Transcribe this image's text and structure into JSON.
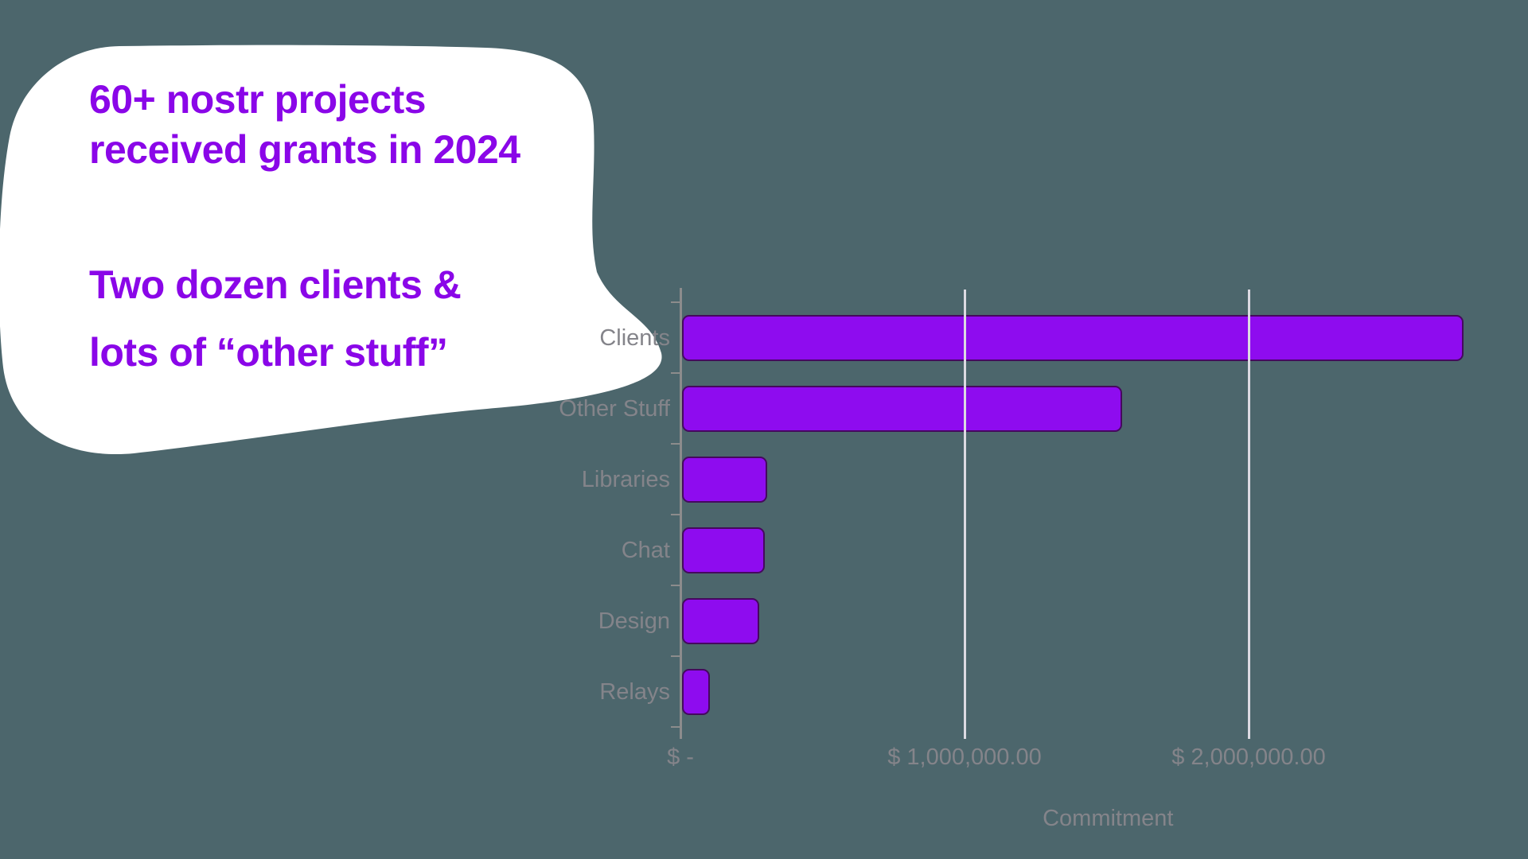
{
  "title": {
    "line1": "60+ nostr projects",
    "line2": "received grants in 2024"
  },
  "subtitle": {
    "line1": "Two dozen clients &",
    "line2": "lots of “other stuff”"
  },
  "chart_data": {
    "type": "bar",
    "orientation": "horizontal",
    "title": "",
    "categories": [
      "Clients",
      "Other Stuff",
      "Libraries",
      "Chat",
      "Design",
      "Relays"
    ],
    "values": [
      2750000,
      1550000,
      300000,
      290000,
      272000,
      98000
    ],
    "series_name": "Commitment",
    "xlabel": "Commitment",
    "ylabel": "",
    "xlim": [
      0,
      2870000
    ],
    "x_ticks": [
      {
        "value": 0,
        "label": "$ -"
      },
      {
        "value": 1000000,
        "label": "$ 1,000,000.00"
      },
      {
        "value": 2000000,
        "label": "$ 2,000,000.00"
      }
    ],
    "grid": "vertical gridlines at labeled ticks",
    "legend": "none"
  },
  "colors": {
    "background": "#4C666C",
    "highlight_blob": "#FFFFFF",
    "accent_text": "#8A06E8",
    "bar_fill": "#8E0CEF",
    "bar_border": "#45095E",
    "axis_line": "#8C8C8C",
    "gridline": "#DCDAE2",
    "label_text": "#84848A"
  }
}
